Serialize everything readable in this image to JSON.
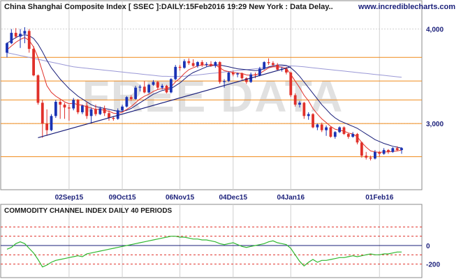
{
  "header": {
    "title": "China Shanghai Composite Index [ SSEC ]:DAILY:15Feb2016 19:29 New York : Data Delay..",
    "site": "www.incrediblecharts.com",
    "watermark": "FREE DATA"
  },
  "indicator": {
    "title": "COMMODITY CHANNEL INDEX DAILY 40 PERIODS"
  },
  "colors": {
    "up": "#1a33b5",
    "down": "#e0302a",
    "ma_short": "#e0302a",
    "ma_long": "#1a1f7a",
    "ma_very_long": "#9a98d6",
    "support": "#f08a1a",
    "trendline": "#1a1f7a",
    "cci_line": "#2fb82f",
    "cci_zero": "#1a1f7a",
    "cci_band": "#e0302a",
    "grid": "#cfcfcf"
  },
  "chart_data": [
    {
      "type": "candlestick",
      "title": "China Shanghai Composite Index [ SSEC ]:DAILY:15Feb2016 19:29 New York : Data Delay..",
      "x_tick_labels": [
        "02Sep15",
        "09Oct15",
        "06Nov15",
        "04Dec15",
        "04Jan16",
        "01Feb16"
      ],
      "y_tick_labels": [
        "4,000",
        "3,000"
      ],
      "ylim": [
        2300,
        4300
      ],
      "grid": true,
      "horizontal_levels": [
        3700,
        3450,
        3250,
        3000,
        2650
      ],
      "trendline": [
        {
          "x": "24Aug15",
          "y": 2850
        },
        {
          "x": "04Jan16",
          "y": 3600
        }
      ],
      "candles": [
        {
          "date": "12Aug15",
          "o": 3750,
          "h": 3860,
          "l": 3700,
          "c": 3850
        },
        {
          "date": "14Aug15",
          "o": 3850,
          "h": 4000,
          "l": 3840,
          "c": 3960
        },
        {
          "date": "17Aug15",
          "o": 3960,
          "h": 4010,
          "l": 3900,
          "c": 3920
        },
        {
          "date": "18Aug15",
          "o": 3920,
          "h": 4000,
          "l": 3800,
          "c": 3950
        },
        {
          "date": "19Aug15",
          "o": 3950,
          "h": 4020,
          "l": 3850,
          "c": 3980
        },
        {
          "date": "20Aug15",
          "o": 3980,
          "h": 4000,
          "l": 3750,
          "c": 3790
        },
        {
          "date": "21Aug15",
          "o": 3790,
          "h": 3820,
          "l": 3500,
          "c": 3510
        },
        {
          "date": "24Aug15",
          "o": 3510,
          "h": 3520,
          "l": 3200,
          "c": 3220
        },
        {
          "date": "25Aug15",
          "o": 3220,
          "h": 3250,
          "l": 2850,
          "c": 3000
        },
        {
          "date": "26Aug15",
          "o": 3000,
          "h": 3150,
          "l": 2870,
          "c": 2930
        },
        {
          "date": "27Aug15",
          "o": 2930,
          "h": 3100,
          "l": 2920,
          "c": 3080
        },
        {
          "date": "28Aug15",
          "o": 3080,
          "h": 3250,
          "l": 3060,
          "c": 3230
        },
        {
          "date": "31Aug15",
          "o": 3230,
          "h": 3250,
          "l": 3050,
          "c": 3200
        },
        {
          "date": "01Sep15",
          "o": 3200,
          "h": 3220,
          "l": 3050,
          "c": 3170
        },
        {
          "date": "02Sep15",
          "o": 3170,
          "h": 3200,
          "l": 3030,
          "c": 3160
        },
        {
          "date": "07Sep15",
          "o": 3160,
          "h": 3270,
          "l": 3140,
          "c": 3250
        },
        {
          "date": "08Sep15",
          "o": 3250,
          "h": 3260,
          "l": 3100,
          "c": 3120
        },
        {
          "date": "10Sep15",
          "o": 3120,
          "h": 3200,
          "l": 3100,
          "c": 3190
        },
        {
          "date": "14Sep15",
          "o": 3190,
          "h": 3230,
          "l": 3050,
          "c": 3080
        },
        {
          "date": "16Sep15",
          "o": 3080,
          "h": 3170,
          "l": 3000,
          "c": 3150
        },
        {
          "date": "18Sep15",
          "o": 3150,
          "h": 3200,
          "l": 3080,
          "c": 3100
        },
        {
          "date": "21Sep15",
          "o": 3100,
          "h": 3180,
          "l": 3090,
          "c": 3160
        },
        {
          "date": "23Sep15",
          "o": 3160,
          "h": 3190,
          "l": 3080,
          "c": 3110
        },
        {
          "date": "25Sep15",
          "o": 3110,
          "h": 3140,
          "l": 3030,
          "c": 3060
        },
        {
          "date": "30Sep15",
          "o": 3060,
          "h": 3080,
          "l": 3030,
          "c": 3050
        },
        {
          "date": "08Oct15",
          "o": 3050,
          "h": 3160,
          "l": 3040,
          "c": 3140
        },
        {
          "date": "09Oct15",
          "o": 3140,
          "h": 3200,
          "l": 3130,
          "c": 3180
        },
        {
          "date": "12Oct15",
          "o": 3180,
          "h": 3290,
          "l": 3170,
          "c": 3280
        },
        {
          "date": "14Oct15",
          "o": 3280,
          "h": 3300,
          "l": 3240,
          "c": 3260
        },
        {
          "date": "16Oct15",
          "o": 3260,
          "h": 3400,
          "l": 3250,
          "c": 3380
        },
        {
          "date": "19Oct15",
          "o": 3380,
          "h": 3410,
          "l": 3340,
          "c": 3390
        },
        {
          "date": "21Oct15",
          "o": 3390,
          "h": 3450,
          "l": 3320,
          "c": 3330
        },
        {
          "date": "23Oct15",
          "o": 3330,
          "h": 3420,
          "l": 3320,
          "c": 3410
        },
        {
          "date": "26Oct15",
          "o": 3410,
          "h": 3460,
          "l": 3400,
          "c": 3440
        },
        {
          "date": "28Oct15",
          "o": 3440,
          "h": 3450,
          "l": 3360,
          "c": 3380
        },
        {
          "date": "30Oct15",
          "o": 3380,
          "h": 3420,
          "l": 3360,
          "c": 3400
        },
        {
          "date": "02Nov15",
          "o": 3400,
          "h": 3410,
          "l": 3320,
          "c": 3330
        },
        {
          "date": "04Nov15",
          "o": 3330,
          "h": 3480,
          "l": 3320,
          "c": 3470
        },
        {
          "date": "05Nov15",
          "o": 3470,
          "h": 3620,
          "l": 3460,
          "c": 3600
        },
        {
          "date": "06Nov15",
          "o": 3600,
          "h": 3620,
          "l": 3560,
          "c": 3590
        },
        {
          "date": "09Nov15",
          "o": 3590,
          "h": 3680,
          "l": 3580,
          "c": 3660
        },
        {
          "date": "10Nov15",
          "o": 3660,
          "h": 3690,
          "l": 3620,
          "c": 3640
        },
        {
          "date": "12Nov15",
          "o": 3640,
          "h": 3680,
          "l": 3600,
          "c": 3610
        },
        {
          "date": "16Nov15",
          "o": 3610,
          "h": 3660,
          "l": 3590,
          "c": 3650
        },
        {
          "date": "18Nov15",
          "o": 3650,
          "h": 3670,
          "l": 3600,
          "c": 3620
        },
        {
          "date": "20Nov15",
          "o": 3620,
          "h": 3650,
          "l": 3600,
          "c": 3630
        },
        {
          "date": "23Nov15",
          "o": 3630,
          "h": 3660,
          "l": 3600,
          "c": 3610
        },
        {
          "date": "25Nov15",
          "o": 3610,
          "h": 3660,
          "l": 3590,
          "c": 3650
        },
        {
          "date": "27Nov15",
          "o": 3650,
          "h": 3660,
          "l": 3420,
          "c": 3440
        },
        {
          "date": "30Nov15",
          "o": 3440,
          "h": 3470,
          "l": 3380,
          "c": 3450
        },
        {
          "date": "02Dec15",
          "o": 3450,
          "h": 3550,
          "l": 3440,
          "c": 3540
        },
        {
          "date": "04Dec15",
          "o": 3540,
          "h": 3560,
          "l": 3500,
          "c": 3520
        },
        {
          "date": "07Dec15",
          "o": 3520,
          "h": 3540,
          "l": 3490,
          "c": 3530
        },
        {
          "date": "09Dec15",
          "o": 3530,
          "h": 3540,
          "l": 3460,
          "c": 3480
        },
        {
          "date": "11Dec15",
          "o": 3480,
          "h": 3490,
          "l": 3420,
          "c": 3440
        },
        {
          "date": "14Dec15",
          "o": 3440,
          "h": 3540,
          "l": 3430,
          "c": 3520
        },
        {
          "date": "16Dec15",
          "o": 3520,
          "h": 3540,
          "l": 3480,
          "c": 3510
        },
        {
          "date": "18Dec15",
          "o": 3510,
          "h": 3600,
          "l": 3500,
          "c": 3580
        },
        {
          "date": "21Dec15",
          "o": 3580,
          "h": 3660,
          "l": 3570,
          "c": 3650
        },
        {
          "date": "23Dec15",
          "o": 3650,
          "h": 3690,
          "l": 3620,
          "c": 3640
        },
        {
          "date": "25Dec15",
          "o": 3640,
          "h": 3660,
          "l": 3600,
          "c": 3620
        },
        {
          "date": "28Dec15",
          "o": 3620,
          "h": 3640,
          "l": 3560,
          "c": 3570
        },
        {
          "date": "30Dec15",
          "o": 3570,
          "h": 3600,
          "l": 3550,
          "c": 3580
        },
        {
          "date": "31Dec15",
          "o": 3580,
          "h": 3600,
          "l": 3520,
          "c": 3540
        },
        {
          "date": "04Jan16",
          "o": 3540,
          "h": 3550,
          "l": 3280,
          "c": 3300
        },
        {
          "date": "05Jan16",
          "o": 3300,
          "h": 3320,
          "l": 3180,
          "c": 3200
        },
        {
          "date": "06Jan16",
          "o": 3200,
          "h": 3240,
          "l": 3170,
          "c": 3220
        },
        {
          "date": "07Jan16",
          "o": 3220,
          "h": 3230,
          "l": 3050,
          "c": 3080
        },
        {
          "date": "08Jan16",
          "o": 3080,
          "h": 3120,
          "l": 3040,
          "c": 3100
        },
        {
          "date": "11Jan16",
          "o": 3100,
          "h": 3110,
          "l": 2950,
          "c": 2960
        },
        {
          "date": "12Jan16",
          "o": 2960,
          "h": 3000,
          "l": 2930,
          "c": 2990
        },
        {
          "date": "13Jan16",
          "o": 2990,
          "h": 3010,
          "l": 2910,
          "c": 2930
        },
        {
          "date": "14Jan16",
          "o": 2930,
          "h": 2980,
          "l": 2870,
          "c": 2960
        },
        {
          "date": "15Jan16",
          "o": 2960,
          "h": 2970,
          "l": 2850,
          "c": 2860
        },
        {
          "date": "18Jan16",
          "o": 2860,
          "h": 2920,
          "l": 2840,
          "c": 2910
        },
        {
          "date": "19Jan16",
          "o": 2910,
          "h": 2970,
          "l": 2900,
          "c": 2960
        },
        {
          "date": "20Jan16",
          "o": 2960,
          "h": 2970,
          "l": 2880,
          "c": 2890
        },
        {
          "date": "21Jan16",
          "o": 2890,
          "h": 2900,
          "l": 2840,
          "c": 2860
        },
        {
          "date": "22Jan16",
          "o": 2860,
          "h": 2910,
          "l": 2850,
          "c": 2890
        },
        {
          "date": "25Jan16",
          "o": 2890,
          "h": 2900,
          "l": 2780,
          "c": 2800
        },
        {
          "date": "26Jan16",
          "o": 2800,
          "h": 2810,
          "l": 2640,
          "c": 2660
        },
        {
          "date": "27Jan16",
          "o": 2660,
          "h": 2700,
          "l": 2620,
          "c": 2640
        },
        {
          "date": "28Jan16",
          "o": 2640,
          "h": 2660,
          "l": 2610,
          "c": 2630
        },
        {
          "date": "29Jan16",
          "o": 2630,
          "h": 2720,
          "l": 2620,
          "c": 2700
        },
        {
          "date": "01Feb16",
          "o": 2700,
          "h": 2710,
          "l": 2650,
          "c": 2680
        },
        {
          "date": "02Feb16",
          "o": 2680,
          "h": 2740,
          "l": 2670,
          "c": 2720
        },
        {
          "date": "03Feb16",
          "o": 2720,
          "h": 2730,
          "l": 2680,
          "c": 2700
        },
        {
          "date": "04Feb16",
          "o": 2700,
          "h": 2750,
          "l": 2690,
          "c": 2740
        },
        {
          "date": "05Feb16",
          "o": 2740,
          "h": 2760,
          "l": 2710,
          "c": 2720
        },
        {
          "date": "15Feb16",
          "o": 2720,
          "h": 2750,
          "l": 2680,
          "c": 2740
        }
      ],
      "ma_short": [
        3780,
        3820,
        3860,
        3890,
        3910,
        3880,
        3810,
        3700,
        3550,
        3400,
        3330,
        3290,
        3260,
        3230,
        3210,
        3215,
        3200,
        3195,
        3175,
        3165,
        3150,
        3150,
        3140,
        3130,
        3110,
        3105,
        3120,
        3150,
        3180,
        3220,
        3260,
        3290,
        3310,
        3340,
        3360,
        3370,
        3370,
        3390,
        3440,
        3480,
        3530,
        3570,
        3590,
        3610,
        3620,
        3620,
        3620,
        3620,
        3590,
        3560,
        3550,
        3540,
        3535,
        3530,
        3515,
        3510,
        3515,
        3530,
        3560,
        3590,
        3600,
        3600,
        3595,
        3585,
        3520,
        3450,
        3380,
        3300,
        3240,
        3160,
        3100,
        3050,
        3010,
        2970,
        2940,
        2930,
        2920,
        2900,
        2890,
        2860,
        2800,
        2750,
        2710,
        2700,
        2695,
        2700,
        2700,
        2705,
        2710,
        2720
      ],
      "ma_long": [
        3850,
        3880,
        3910,
        3930,
        3940,
        3930,
        3900,
        3840,
        3760,
        3670,
        3590,
        3530,
        3470,
        3420,
        3370,
        3330,
        3290,
        3260,
        3230,
        3200,
        3180,
        3170,
        3160,
        3150,
        3140,
        3130,
        3130,
        3140,
        3160,
        3190,
        3220,
        3250,
        3280,
        3310,
        3330,
        3350,
        3360,
        3370,
        3400,
        3430,
        3470,
        3510,
        3540,
        3560,
        3580,
        3600,
        3610,
        3620,
        3620,
        3610,
        3600,
        3590,
        3580,
        3575,
        3570,
        3565,
        3560,
        3565,
        3580,
        3600,
        3610,
        3620,
        3620,
        3615,
        3590,
        3550,
        3500,
        3440,
        3380,
        3320,
        3260,
        3200,
        3150,
        3100,
        3060,
        3030,
        3010,
        2990,
        2970,
        2950,
        2920,
        2890,
        2860,
        2830,
        2810,
        2790,
        2775,
        2760,
        2750,
        2740
      ],
      "ma_very_long": [
        3750,
        3740,
        3730,
        3720,
        3710,
        3700,
        3690,
        3680,
        3670,
        3660,
        3650,
        3640,
        3630,
        3620,
        3610,
        3600,
        3595,
        3590,
        3585,
        3580,
        3575,
        3570,
        3565,
        3560,
        3555,
        3550,
        3545,
        3540,
        3535,
        3530,
        3525,
        3520,
        3515,
        3510,
        3505,
        3500,
        3500,
        3498,
        3498,
        3500,
        3500,
        3505,
        3510,
        3515,
        3520,
        3525,
        3530,
        3535,
        3540,
        3545,
        3550,
        3555,
        3560,
        3565,
        3570,
        3575,
        3580,
        3585,
        3590,
        3595,
        3600,
        3605,
        3608,
        3610,
        3610,
        3608,
        3605,
        3600,
        3595,
        3590,
        3585,
        3580,
        3575,
        3570,
        3565,
        3560,
        3555,
        3550,
        3545,
        3540,
        3535,
        3530,
        3525,
        3520,
        3515,
        3510,
        3505,
        3500,
        3495,
        3490
      ]
    },
    {
      "type": "line",
      "title": "COMMODITY CHANNEL INDEX DAILY 40 PERIODS",
      "y_tick_labels": [
        "0",
        "-200"
      ],
      "ylim": [
        -300,
        300
      ],
      "reference_lines": [
        200,
        100,
        0,
        -100,
        -200
      ],
      "series": [
        {
          "values": [
            -40,
            -20,
            20,
            40,
            20,
            -30,
            -80,
            -150,
            -230,
            -210,
            -180,
            -160,
            -150,
            -140,
            -130,
            -120,
            -110,
            -120,
            -90,
            -80,
            -70,
            -60,
            -50,
            -40,
            -30,
            -20,
            -10,
            0,
            10,
            20,
            30,
            40,
            50,
            60,
            70,
            80,
            90,
            100,
            100,
            90,
            90,
            80,
            70,
            70,
            60,
            60,
            50,
            40,
            20,
            10,
            20,
            30,
            10,
            -10,
            -20,
            -10,
            0,
            10,
            20,
            40,
            50,
            30,
            20,
            10,
            -30,
            -100,
            -170,
            -220,
            -180,
            -150,
            -180,
            -160,
            -160,
            -150,
            -140,
            -130,
            -130,
            -120,
            -110,
            -120,
            -110,
            -100,
            -90,
            -100,
            -100,
            -90,
            -90,
            -80,
            -70,
            -70
          ]
        }
      ]
    }
  ]
}
